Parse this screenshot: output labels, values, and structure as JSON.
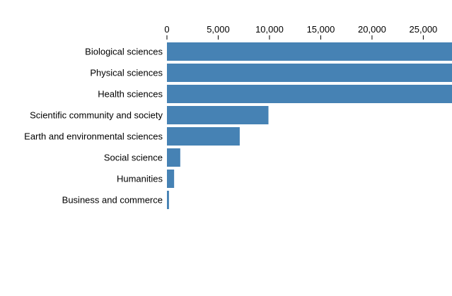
{
  "colors": {
    "bar": "#4682b4",
    "axis_text": "#000000",
    "tick_line": "#000000"
  },
  "chart_data": {
    "type": "bar",
    "orientation": "horizontal",
    "categories": [
      "Biological sciences",
      "Physical sciences",
      "Health sciences",
      "Scientific community and society",
      "Earth and environmental sciences",
      "Social science",
      "Humanities",
      "Business and commerce"
    ],
    "values": [
      30000,
      30000,
      30000,
      9900,
      7100,
      1300,
      700,
      200
    ],
    "x_ticks": [
      0,
      5000,
      10000,
      15000,
      20000,
      25000
    ],
    "x_tick_labels": [
      "0",
      "5,000",
      "10,000",
      "15,000",
      "20,000",
      "25,000"
    ],
    "xlim": [
      0,
      27800
    ],
    "title": "",
    "xlabel": "",
    "ylabel": "",
    "axis_position": "top",
    "grid": false,
    "legend": "none"
  }
}
